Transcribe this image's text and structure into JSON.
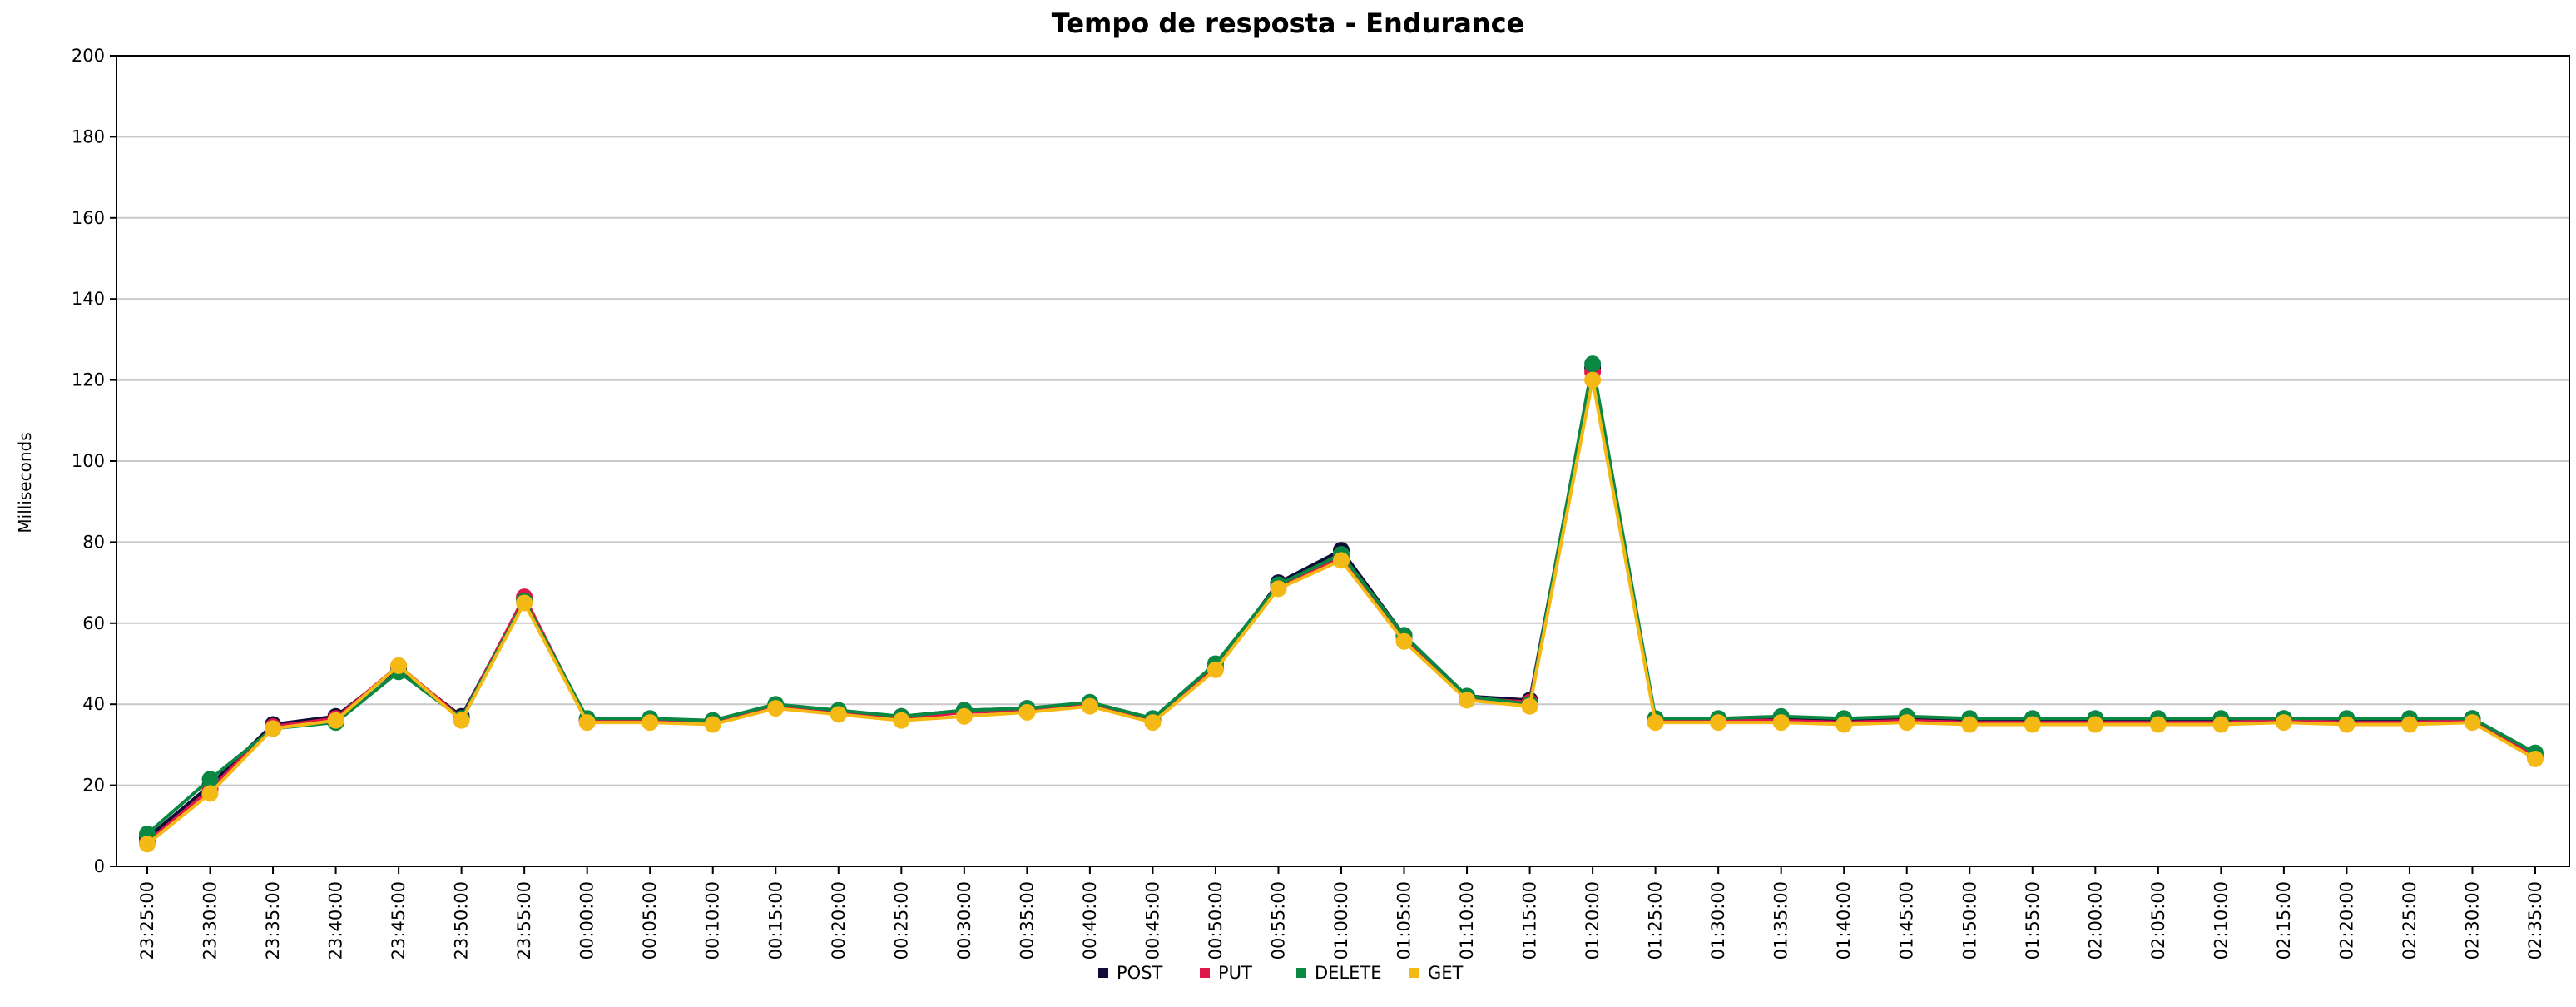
{
  "chart_data": {
    "type": "line",
    "title": "Tempo de resposta - Endurance",
    "xlabel": "",
    "ylabel": "Milliseconds",
    "ylim": [
      0,
      200
    ],
    "yticks": [
      0,
      20,
      40,
      60,
      80,
      100,
      120,
      140,
      160,
      180,
      200
    ],
    "grid": "horizontal",
    "legend_position": "bottom-center",
    "categories": [
      "23:25:00",
      "23:30:00",
      "23:35:00",
      "23:40:00",
      "23:45:00",
      "23:50:00",
      "23:55:00",
      "00:00:00",
      "00:05:00",
      "00:10:00",
      "00:15:00",
      "00:20:00",
      "00:25:00",
      "00:30:00",
      "00:35:00",
      "00:40:00",
      "00:45:00",
      "00:50:00",
      "00:55:00",
      "01:00:00",
      "01:05:00",
      "01:10:00",
      "01:15:00",
      "01:20:00",
      "01:25:00",
      "01:30:00",
      "01:35:00",
      "01:40:00",
      "01:45:00",
      "01:50:00",
      "01:55:00",
      "02:00:00",
      "02:05:00",
      "02:10:00",
      "02:15:00",
      "02:20:00",
      "02:25:00",
      "02:30:00",
      "02:35:00"
    ],
    "series": [
      {
        "name": "POST",
        "color": "#0f0c38",
        "values": [
          7,
          20,
          35,
          37,
          49,
          37,
          66,
          36,
          36,
          36,
          39.5,
          38,
          37,
          38.5,
          39,
          40,
          36,
          49,
          70,
          78,
          57,
          42,
          41,
          123,
          36,
          36,
          36.5,
          36,
          36.5,
          36,
          36,
          36,
          36,
          36,
          36.5,
          36,
          36,
          36.5,
          27
        ]
      },
      {
        "name": "PUT",
        "color": "#e0174a",
        "values": [
          6,
          19,
          34.5,
          36.5,
          49.5,
          36.5,
          66.5,
          36,
          36,
          35.5,
          39.5,
          38,
          36.5,
          38,
          38.5,
          40,
          36,
          49,
          69,
          76.5,
          56.5,
          41.5,
          40.5,
          122,
          36,
          36,
          36,
          35.5,
          36,
          35.5,
          35.5,
          35.5,
          35.5,
          35.5,
          36,
          35.5,
          35.5,
          36,
          27
        ]
      },
      {
        "name": "DELETE",
        "color": "#0a8843",
        "values": [
          8,
          21.5,
          34,
          35.5,
          48,
          36.5,
          65.5,
          36.5,
          36.5,
          36,
          40,
          38.5,
          37,
          38.5,
          39,
          40.5,
          36.5,
          50,
          69.5,
          77,
          57,
          42,
          40,
          124,
          36.5,
          36.5,
          37,
          36.5,
          37,
          36.5,
          36.5,
          36.5,
          36.5,
          36.5,
          36.5,
          36.5,
          36.5,
          36.5,
          28
        ]
      },
      {
        "name": "GET",
        "color": "#f5b915",
        "values": [
          5.5,
          18,
          34,
          36,
          49.5,
          36,
          65,
          35.5,
          35.5,
          35,
          39,
          37.5,
          36,
          37,
          38,
          39.5,
          35.5,
          48.5,
          68.5,
          75.5,
          55.5,
          41,
          39.5,
          120,
          35.5,
          35.5,
          35.5,
          35,
          35.5,
          35,
          35,
          35,
          35,
          35,
          35.5,
          35,
          35,
          35.5,
          26.5
        ]
      }
    ]
  }
}
